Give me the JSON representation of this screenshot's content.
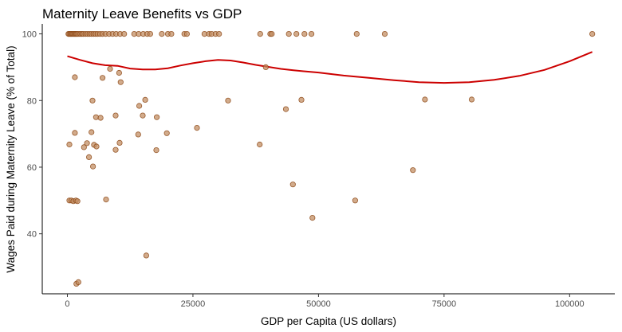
{
  "chart_data": {
    "type": "scatter",
    "title": "Maternity Leave Benefits vs GDP",
    "xlabel": "GDP per Capita (US dollars)",
    "ylabel": "Wages Paid during Maternity Leave (% of Total)",
    "xlim": [
      -5000,
      109000
    ],
    "ylim": [
      22,
      103
    ],
    "xticks": [
      0,
      25000,
      50000,
      75000,
      100000
    ],
    "xtick_labels": [
      "0",
      "25000",
      "50000",
      "75000",
      "100000"
    ],
    "yticks": [
      40,
      60,
      80,
      100
    ],
    "ytick_labels": [
      "40",
      "60",
      "80",
      "100"
    ],
    "grid": false,
    "point_color": "#c08a5e",
    "point_edge_color": "#8b4513",
    "trend_color": "#cc0000",
    "points": [
      [
        200,
        100
      ],
      [
        400,
        100
      ],
      [
        600,
        100
      ],
      [
        800,
        100
      ],
      [
        1000,
        100
      ],
      [
        1200,
        100
      ],
      [
        1400,
        100
      ],
      [
        1600,
        100
      ],
      [
        1800,
        100
      ],
      [
        2000,
        100
      ],
      [
        2300,
        100
      ],
      [
        2600,
        100
      ],
      [
        2900,
        100
      ],
      [
        3200,
        100
      ],
      [
        3600,
        100
      ],
      [
        4000,
        100
      ],
      [
        4400,
        100
      ],
      [
        4800,
        100
      ],
      [
        5200,
        100
      ],
      [
        5600,
        100
      ],
      [
        6000,
        100
      ],
      [
        6500,
        100
      ],
      [
        7000,
        100
      ],
      [
        7600,
        100
      ],
      [
        8300,
        100
      ],
      [
        9000,
        100
      ],
      [
        9700,
        100
      ],
      [
        10500,
        100
      ],
      [
        11300,
        100
      ],
      [
        13300,
        100
      ],
      [
        14200,
        100
      ],
      [
        15100,
        100
      ],
      [
        15900,
        100
      ],
      [
        16500,
        100
      ],
      [
        18800,
        100
      ],
      [
        20000,
        100
      ],
      [
        20700,
        100
      ],
      [
        23300,
        100
      ],
      [
        23800,
        100
      ],
      [
        27300,
        100
      ],
      [
        28200,
        100
      ],
      [
        28700,
        100
      ],
      [
        29500,
        100
      ],
      [
        30200,
        100
      ],
      [
        38400,
        100
      ],
      [
        40400,
        100
      ],
      [
        40700,
        100
      ],
      [
        44100,
        100
      ],
      [
        45600,
        100
      ],
      [
        47200,
        100
      ],
      [
        48600,
        100
      ],
      [
        57600,
        100
      ],
      [
        63200,
        100
      ],
      [
        104500,
        100
      ],
      [
        1500,
        87
      ],
      [
        7000,
        86.8
      ],
      [
        8500,
        89.5
      ],
      [
        10300,
        88.3
      ],
      [
        10600,
        85.5
      ],
      [
        39500,
        90
      ],
      [
        5000,
        80
      ],
      [
        15500,
        80.2
      ],
      [
        32000,
        80
      ],
      [
        46600,
        80.2
      ],
      [
        71200,
        80.3
      ],
      [
        80500,
        80.3
      ],
      [
        14300,
        78.4
      ],
      [
        15000,
        75.5
      ],
      [
        17800,
        75
      ],
      [
        5700,
        75
      ],
      [
        6600,
        74.8
      ],
      [
        9600,
        75.5
      ],
      [
        43500,
        77.4
      ],
      [
        25800,
        71.8
      ],
      [
        1500,
        70.3
      ],
      [
        4800,
        70.5
      ],
      [
        14100,
        69.8
      ],
      [
        19800,
        70.2
      ],
      [
        400,
        66.8
      ],
      [
        3300,
        66
      ],
      [
        3900,
        67.2
      ],
      [
        5300,
        66.7
      ],
      [
        5800,
        66.2
      ],
      [
        9600,
        65.2
      ],
      [
        10400,
        67.3
      ],
      [
        17700,
        65.1
      ],
      [
        38300,
        66.8
      ],
      [
        4300,
        63
      ],
      [
        5100,
        60.2
      ],
      [
        68800,
        59.1
      ],
      [
        400,
        50
      ],
      [
        800,
        50
      ],
      [
        1200,
        49.8
      ],
      [
        1700,
        50
      ],
      [
        2000,
        49.8
      ],
      [
        7700,
        50.3
      ],
      [
        57300,
        50
      ],
      [
        44900,
        54.8
      ],
      [
        48800,
        44.8
      ],
      [
        15700,
        33.5
      ],
      [
        1800,
        25
      ],
      [
        2200,
        25.5
      ]
    ],
    "trend": {
      "x": [
        0,
        2500,
        5000,
        7500,
        10000,
        12500,
        15000,
        17500,
        20000,
        22500,
        25000,
        27500,
        30000,
        32500,
        35000,
        37500,
        40000,
        42500,
        45000,
        47500,
        50000,
        55000,
        60000,
        65000,
        70000,
        75000,
        80000,
        85000,
        90000,
        95000,
        100000,
        104500
      ],
      "y": [
        93.3,
        92.2,
        91.2,
        90.6,
        90.4,
        89.6,
        89.3,
        89.3,
        89.7,
        90.5,
        91.2,
        91.8,
        92.2,
        92.0,
        91.4,
        90.7,
        90.1,
        89.5,
        89.1,
        88.7,
        88.4,
        87.5,
        86.8,
        86.1,
        85.5,
        85.3,
        85.5,
        86.2,
        87.4,
        89.2,
        91.8,
        94.6
      ]
    }
  }
}
